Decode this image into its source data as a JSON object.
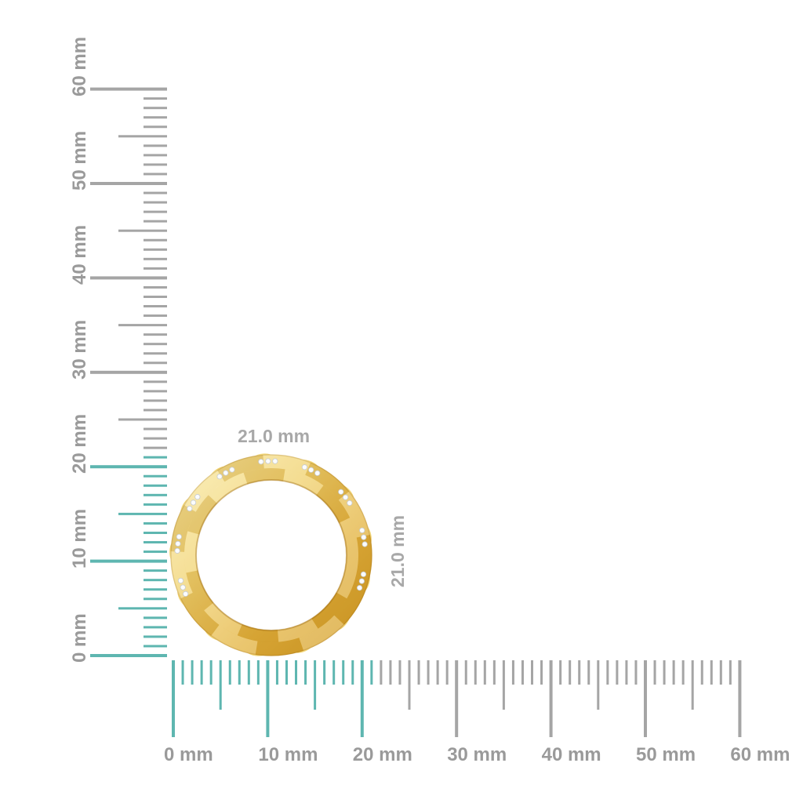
{
  "figure": {
    "type": "jewelry-size-reference-diagram",
    "background": "#ffffff",
    "dimension_labels": {
      "width_label": "21.0 mm",
      "height_label": "21.0 mm"
    },
    "ring": {
      "description": "gold eternity band with small diamonds, top view, twisted faceted pattern",
      "outer_diameter_mm": 21.0,
      "colors": {
        "gold_highlight": "#F8E79E",
        "gold_light": "#F1D26E",
        "gold_mid": "#E3B23C",
        "gold_deep": "#D49F28",
        "facet_shade": "rgba(150,95,10,0.16)",
        "facet_light": "rgba(255,255,255,0.26)",
        "diamond": "#FBFCFD",
        "diamond_edge": "#C6CBD2"
      }
    },
    "rulers": {
      "unit": "mm",
      "min_mm": 0,
      "max_mm": 60,
      "minor_step_mm": 1,
      "half_step_mm": 5,
      "major_step_mm": 10,
      "highlight_until_mm": 21,
      "labeled_ticks_mm": [
        0,
        10,
        20,
        30,
        40,
        50,
        60
      ],
      "tick_labels": [
        "0 mm",
        "10 mm",
        "20 mm",
        "30 mm",
        "40 mm",
        "50 mm",
        "60 mm"
      ],
      "colors": {
        "highlight_tick": "#5EB6B0",
        "normal_tick": "#A5A5A5",
        "label_text": "#9A9A9A"
      }
    }
  }
}
